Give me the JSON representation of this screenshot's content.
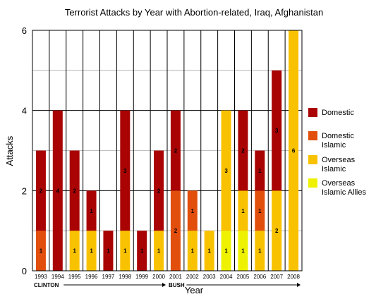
{
  "chart_data": {
    "type": "bar",
    "stacked": true,
    "title": "Terrorist Attacks by Year with Abortion-related, Iraq, Afghanistan",
    "xlabel": "Year",
    "ylabel": "Attacks",
    "ylim": [
      0,
      6
    ],
    "yticks": [
      "0",
      "2",
      "4",
      "6"
    ],
    "grid": true,
    "legend_position": "right",
    "categories": [
      "1993",
      "1994",
      "1995",
      "1996",
      "1997",
      "1998",
      "1999",
      "2000",
      "2001",
      "2002",
      "2003",
      "2004",
      "2005",
      "2006",
      "2007",
      "2008"
    ],
    "series": [
      {
        "name": "Overseas Islamic Allies",
        "color": "#eef200",
        "values": [
          0,
          0,
          0,
          0,
          0,
          0,
          0,
          0,
          0,
          0,
          0,
          1,
          1,
          0,
          0,
          0
        ]
      },
      {
        "name": "Overseas Islamic",
        "color": "#f9c200",
        "values": [
          0,
          0,
          1,
          1,
          0,
          1,
          0,
          1,
          0,
          1,
          1,
          3,
          1,
          1,
          2,
          6
        ]
      },
      {
        "name": "Domestic Islamic",
        "color": "#e24e0c",
        "values": [
          1,
          0,
          0,
          0,
          0,
          0,
          0,
          0,
          2,
          1,
          0,
          0,
          0,
          1,
          0,
          0
        ]
      },
      {
        "name": "Domestic",
        "color": "#a90303",
        "values": [
          2,
          4,
          2,
          1,
          1,
          3,
          1,
          2,
          2,
          0,
          0,
          0,
          2,
          1,
          3,
          0
        ]
      }
    ],
    "legend_order": [
      "Domestic",
      "Domestic Islamic",
      "Overseas Islamic",
      "Overseas Islamic Allies"
    ],
    "eras": [
      {
        "label": "CLINTON",
        "start": "1993",
        "end": "2000"
      },
      {
        "label": "BUSH",
        "start": "2001",
        "end": "2008"
      }
    ]
  }
}
